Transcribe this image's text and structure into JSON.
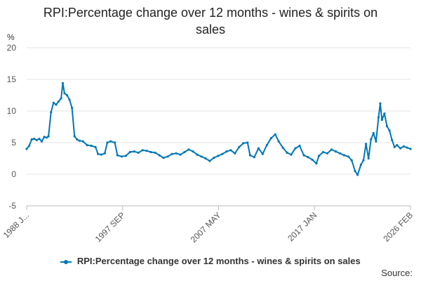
{
  "chart_data": {
    "type": "line",
    "title_lines": [
      "RPI:Percentage change over 12 months - wines & spirits on",
      "sales"
    ],
    "ylabel": "%",
    "ylim": [
      -5,
      20
    ],
    "yticks": [
      "20",
      "15",
      "10",
      "5",
      "0",
      "-5"
    ],
    "x_tick_labels": [
      "1988 J...",
      "1997 SEP",
      "2007 MAY",
      "2017 JAN",
      "2026 FEB"
    ],
    "grid": true,
    "legend_position": "bottom",
    "series": [
      {
        "name": "RPI:Percentage change over 12 months - wines & spirits on sales",
        "color": "#0077b8",
        "points": [
          [
            "1988-01",
            4.0
          ],
          [
            "1988-04",
            4.5
          ],
          [
            "1988-07",
            5.5
          ],
          [
            "1988-10",
            5.6
          ],
          [
            "1989-01",
            5.4
          ],
          [
            "1989-04",
            5.6
          ],
          [
            "1989-07",
            5.2
          ],
          [
            "1989-10",
            5.9
          ],
          [
            "1990-01",
            5.8
          ],
          [
            "1990-03",
            6.0
          ],
          [
            "1990-06",
            9.8
          ],
          [
            "1990-09",
            11.3
          ],
          [
            "1990-12",
            11.0
          ],
          [
            "1991-03",
            11.5
          ],
          [
            "1991-06",
            12.0
          ],
          [
            "1991-08",
            14.4
          ],
          [
            "1991-10",
            12.8
          ],
          [
            "1992-01",
            12.5
          ],
          [
            "1992-04",
            11.8
          ],
          [
            "1992-07",
            10.5
          ],
          [
            "1992-10",
            6.0
          ],
          [
            "1993-01",
            5.5
          ],
          [
            "1993-04",
            5.3
          ],
          [
            "1993-08",
            5.2
          ],
          [
            "1994-01",
            4.6
          ],
          [
            "1994-06",
            4.5
          ],
          [
            "1994-11",
            4.3
          ],
          [
            "1995-02",
            3.2
          ],
          [
            "1995-06",
            3.1
          ],
          [
            "1995-10",
            3.3
          ],
          [
            "1996-01",
            5.0
          ],
          [
            "1996-05",
            5.2
          ],
          [
            "1996-10",
            5.0
          ],
          [
            "1997-01",
            3.0
          ],
          [
            "1997-06",
            2.8
          ],
          [
            "1997-11",
            2.9
          ],
          [
            "1998-04",
            3.5
          ],
          [
            "1998-09",
            3.6
          ],
          [
            "1999-02",
            3.4
          ],
          [
            "1999-07",
            3.8
          ],
          [
            "1999-12",
            3.7
          ],
          [
            "2000-05",
            3.5
          ],
          [
            "2000-10",
            3.4
          ],
          [
            "2001-03",
            3.0
          ],
          [
            "2001-08",
            2.6
          ],
          [
            "2002-01",
            2.8
          ],
          [
            "2002-06",
            3.2
          ],
          [
            "2002-11",
            3.3
          ],
          [
            "2003-04",
            3.1
          ],
          [
            "2003-09",
            3.5
          ],
          [
            "2004-02",
            3.9
          ],
          [
            "2004-07",
            3.6
          ],
          [
            "2004-12",
            3.1
          ],
          [
            "2005-05",
            2.8
          ],
          [
            "2005-10",
            2.5
          ],
          [
            "2006-03",
            2.1
          ],
          [
            "2006-08",
            2.6
          ],
          [
            "2007-01",
            2.9
          ],
          [
            "2007-06",
            3.2
          ],
          [
            "2007-11",
            3.6
          ],
          [
            "2008-04",
            3.8
          ],
          [
            "2008-09",
            3.3
          ],
          [
            "2009-02",
            4.3
          ],
          [
            "2009-07",
            4.9
          ],
          [
            "2009-12",
            5.0
          ],
          [
            "2010-03",
            3.0
          ],
          [
            "2010-08",
            2.7
          ],
          [
            "2011-01",
            4.1
          ],
          [
            "2011-06",
            3.2
          ],
          [
            "2011-11",
            4.6
          ],
          [
            "2012-04",
            5.7
          ],
          [
            "2012-09",
            6.3
          ],
          [
            "2013-01",
            5.2
          ],
          [
            "2013-06",
            4.2
          ],
          [
            "2013-11",
            3.4
          ],
          [
            "2014-04",
            3.1
          ],
          [
            "2014-09",
            4.1
          ],
          [
            "2015-02",
            4.5
          ],
          [
            "2015-07",
            3.0
          ],
          [
            "2015-12",
            2.7
          ],
          [
            "2016-05",
            2.3
          ],
          [
            "2016-10",
            1.7
          ],
          [
            "2017-01",
            2.9
          ],
          [
            "2017-06",
            3.5
          ],
          [
            "2017-11",
            3.3
          ],
          [
            "2018-04",
            3.9
          ],
          [
            "2018-09",
            3.6
          ],
          [
            "2019-02",
            3.3
          ],
          [
            "2019-07",
            3.0
          ],
          [
            "2019-12",
            2.8
          ],
          [
            "2020-04",
            2.2
          ],
          [
            "2020-08",
            0.5
          ],
          [
            "2020-11",
            -0.1
          ],
          [
            "2021-03",
            1.5
          ],
          [
            "2021-06",
            2.2
          ],
          [
            "2021-09",
            4.8
          ],
          [
            "2021-12",
            2.5
          ],
          [
            "2022-03",
            5.5
          ],
          [
            "2022-06",
            6.5
          ],
          [
            "2022-09",
            5.2
          ],
          [
            "2022-12",
            9.0
          ],
          [
            "2023-02",
            11.2
          ],
          [
            "2023-04",
            8.6
          ],
          [
            "2023-07",
            9.6
          ],
          [
            "2023-10",
            7.6
          ],
          [
            "2024-01",
            6.9
          ],
          [
            "2024-04",
            5.4
          ],
          [
            "2024-07",
            4.3
          ],
          [
            "2024-10",
            4.6
          ],
          [
            "2025-02",
            4.1
          ],
          [
            "2025-06",
            4.4
          ],
          [
            "2025-10",
            4.2
          ],
          [
            "2026-02",
            4.0
          ]
        ]
      }
    ]
  },
  "source_label": "Source:"
}
